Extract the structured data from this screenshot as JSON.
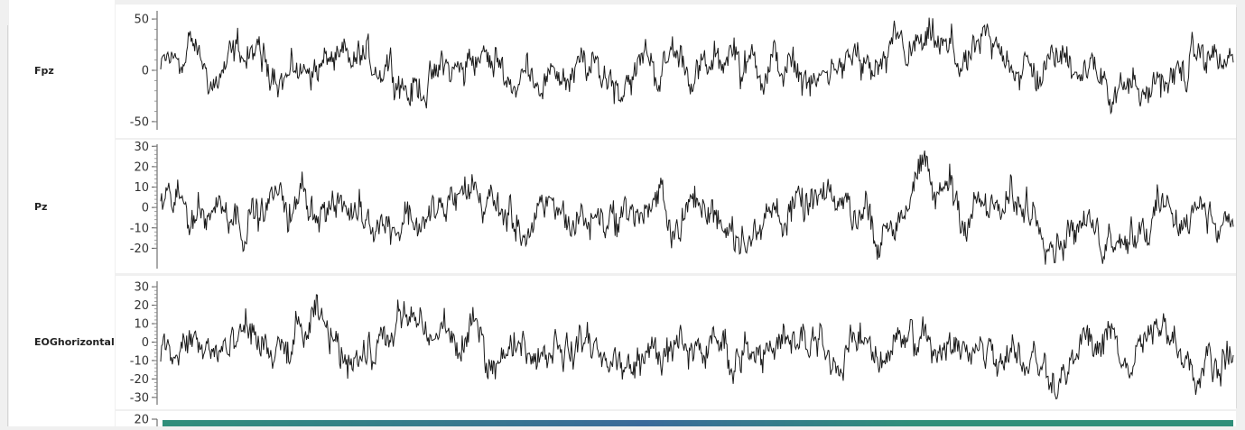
{
  "channels": [
    {
      "name": "Fpz",
      "yticks": [
        50,
        0,
        -50
      ],
      "ymin": -58,
      "ymax": 58
    },
    {
      "name": "Pz",
      "yticks": [
        30,
        20,
        10,
        0,
        -10,
        -20
      ],
      "ymin": -30,
      "ymax": 31
    },
    {
      "name": "EOGhorizontal",
      "yticks": [
        30,
        20,
        10,
        0,
        -10,
        -20,
        -30
      ],
      "ymin": -34,
      "ymax": 33
    }
  ],
  "partial_channel": {
    "yticks": [
      20
    ]
  },
  "colors": {
    "trace": "#1a1a1a",
    "axis": "#555555",
    "heatmap_a": "#2f8f7a",
    "heatmap_b": "#3a6a9a"
  },
  "chart_data": {
    "type": "line",
    "series": [
      {
        "name": "Fpz",
        "ylim": [
          -58,
          58
        ],
        "samples": 1200
      },
      {
        "name": "Pz",
        "ylim": [
          -30,
          31
        ],
        "samples": 1200
      },
      {
        "name": "EOGhorizontal",
        "ylim": [
          -34,
          33
        ],
        "samples": 1200
      }
    ],
    "xlabel": "",
    "ylabel": "",
    "grid": false
  }
}
